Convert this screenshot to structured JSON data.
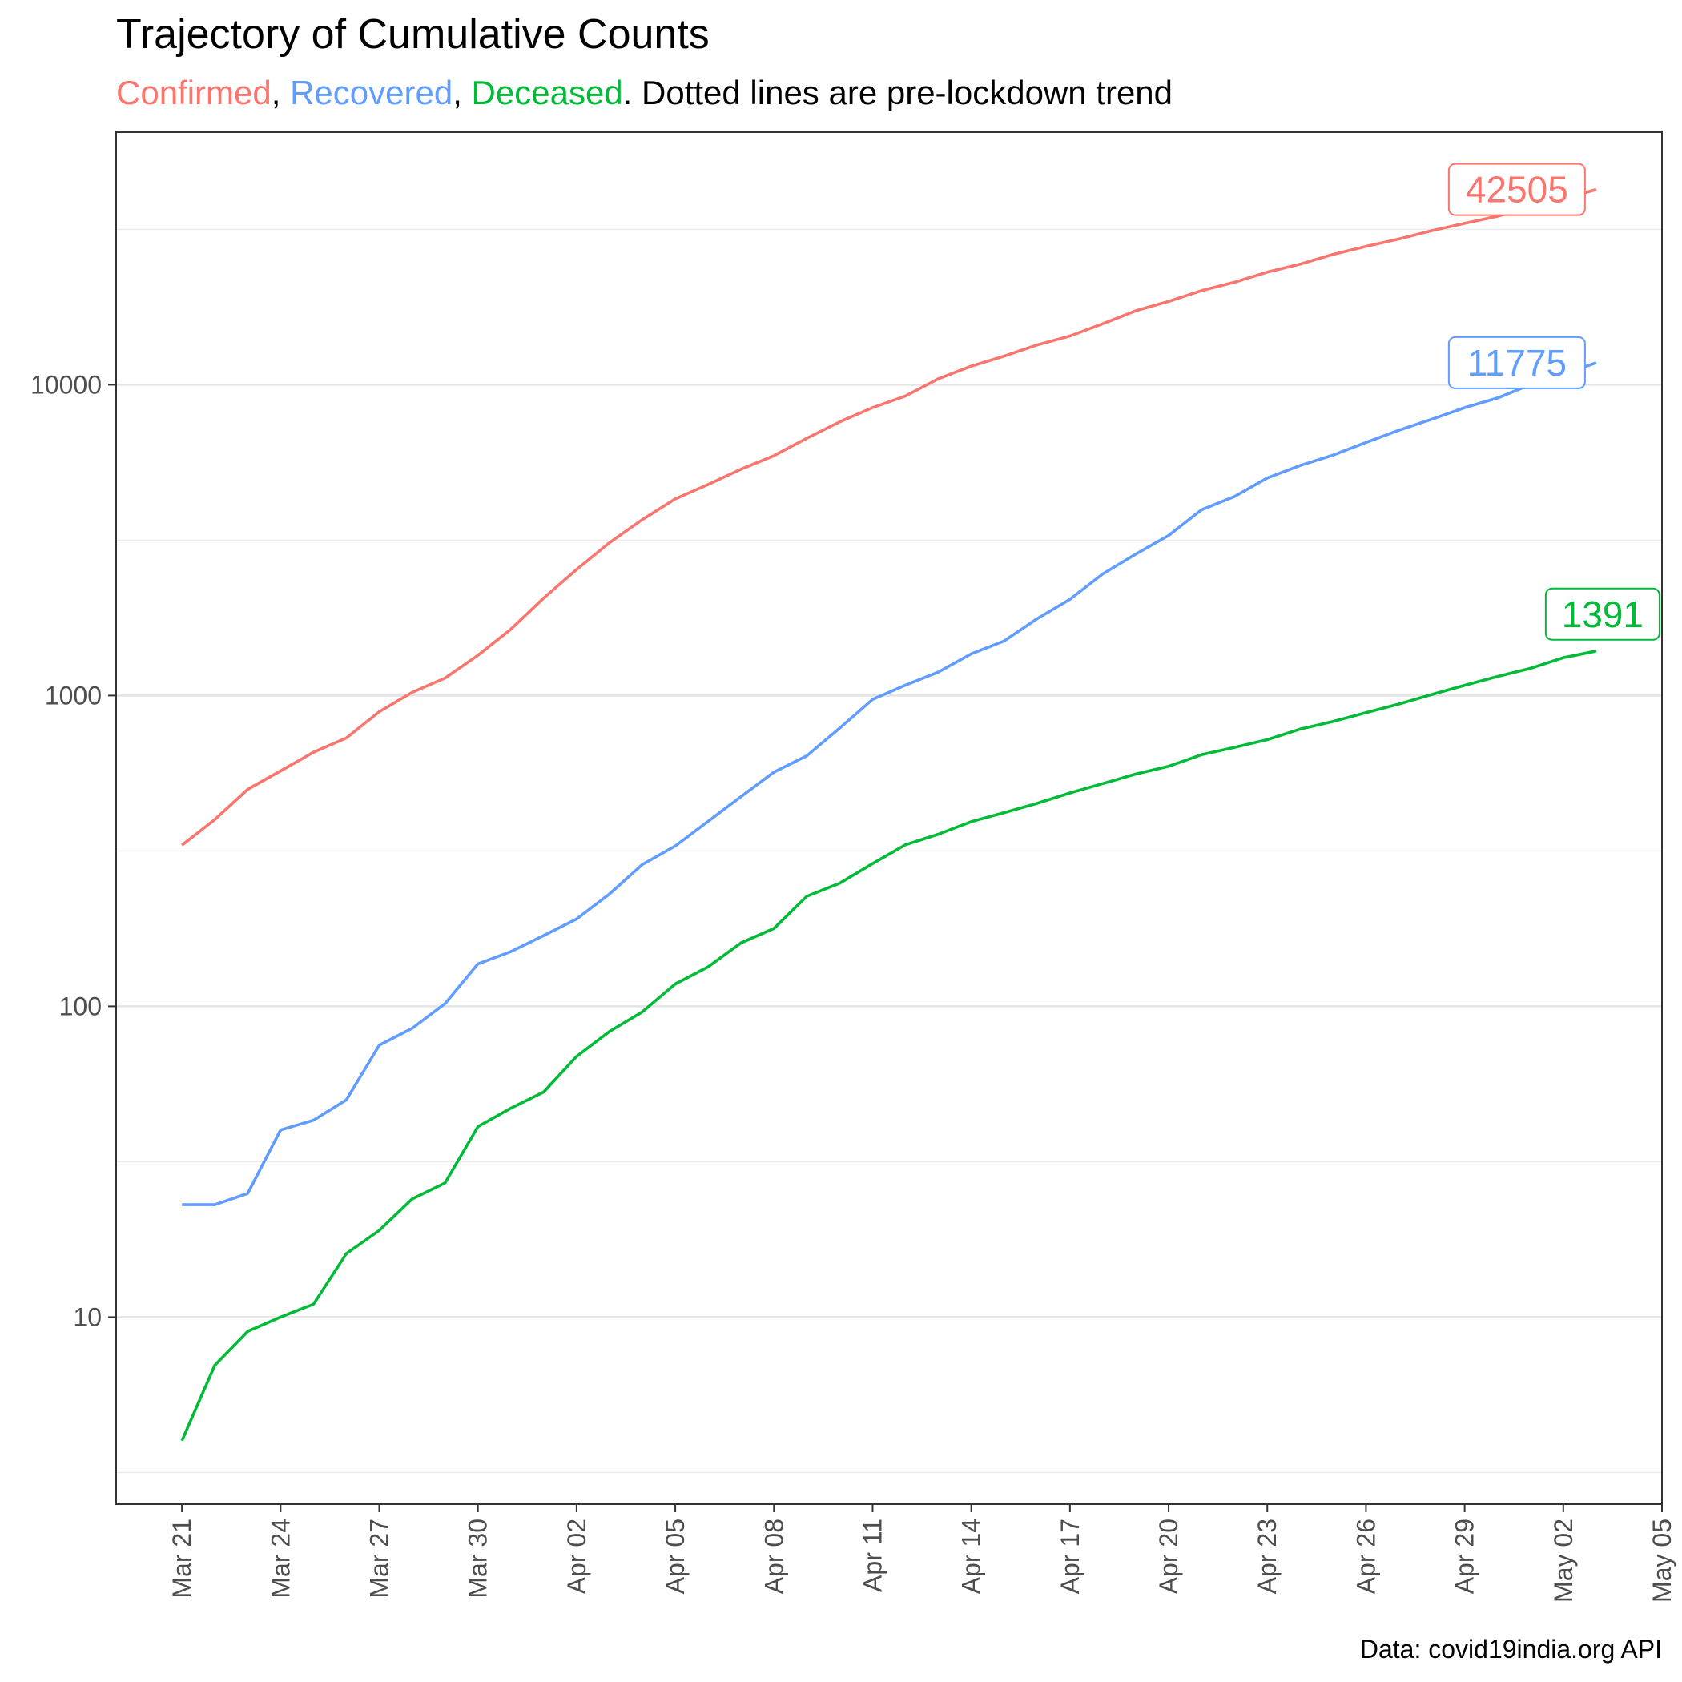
{
  "chart_data": {
    "type": "line",
    "title": "Trajectory of Cumulative Counts",
    "subtitle": {
      "parts": [
        {
          "text": "Confirmed",
          "color": "#F8766D"
        },
        {
          "text": ", ",
          "color": "#000000"
        },
        {
          "text": "Recovered",
          "color": "#619CFF"
        },
        {
          "text": ", ",
          "color": "#000000"
        },
        {
          "text": "Deceased",
          "color": "#00BA38"
        },
        {
          "text": ". Dotted lines are pre-lockdown trend",
          "color": "#000000"
        }
      ]
    },
    "caption": "Data: covid19india.org API",
    "y_scale": "log10",
    "ylim": [
      2.5,
      65000
    ],
    "y_ticks": [
      10,
      100,
      1000,
      10000
    ],
    "y_tick_labels": [
      "10",
      "100",
      "1000",
      "10000"
    ],
    "x_start": "2020-03-19",
    "x_end": "2020-05-05",
    "x_tick_labels": [
      "Mar 21",
      "Mar 24",
      "Mar 27",
      "Mar 30",
      "Apr 02",
      "Apr 05",
      "Apr 08",
      "Apr 11",
      "Apr 14",
      "Apr 17",
      "Apr 20",
      "Apr 23",
      "Apr 26",
      "Apr 29",
      "May 02",
      "May 05"
    ],
    "x_tick_dates": [
      "2020-03-21",
      "2020-03-24",
      "2020-03-27",
      "2020-03-30",
      "2020-04-02",
      "2020-04-05",
      "2020-04-08",
      "2020-04-11",
      "2020-04-14",
      "2020-04-17",
      "2020-04-20",
      "2020-04-23",
      "2020-04-26",
      "2020-04-29",
      "2020-05-02",
      "2020-05-05"
    ],
    "grid": true,
    "x": [
      "2020-03-21",
      "2020-03-22",
      "2020-03-23",
      "2020-03-24",
      "2020-03-25",
      "2020-03-26",
      "2020-03-27",
      "2020-03-28",
      "2020-03-29",
      "2020-03-30",
      "2020-03-31",
      "2020-04-01",
      "2020-04-02",
      "2020-04-03",
      "2020-04-04",
      "2020-04-05",
      "2020-04-06",
      "2020-04-07",
      "2020-04-08",
      "2020-04-09",
      "2020-04-10",
      "2020-04-11",
      "2020-04-12",
      "2020-04-13",
      "2020-04-14",
      "2020-04-15",
      "2020-04-16",
      "2020-04-17",
      "2020-04-18",
      "2020-04-19",
      "2020-04-20",
      "2020-04-21",
      "2020-04-22",
      "2020-04-23",
      "2020-04-24",
      "2020-04-25",
      "2020-04-26",
      "2020-04-27",
      "2020-04-28",
      "2020-04-29",
      "2020-04-30",
      "2020-05-01",
      "2020-05-02",
      "2020-05-03"
    ],
    "series": [
      {
        "name": "Confirmed",
        "color": "#F8766D",
        "end_label": "42505",
        "values": [
          330,
          399,
          499,
          572,
          657,
          730,
          887,
          1024,
          1138,
          1347,
          1635,
          2059,
          2545,
          3105,
          3684,
          4293,
          4777,
          5350,
          5915,
          6728,
          7599,
          8446,
          9205,
          10454,
          11485,
          12371,
          13430,
          14352,
          15722,
          17305,
          18544,
          20081,
          21373,
          23039,
          24447,
          26283,
          27890,
          29451,
          31324,
          33062,
          34863,
          37257,
          39699,
          42505
        ]
      },
      {
        "name": "Recovered",
        "color": "#619CFF",
        "end_label": "11775",
        "values": [
          23,
          23,
          25,
          40,
          43,
          50,
          75,
          85,
          102,
          137,
          150,
          169,
          191,
          230,
          286,
          328,
          394,
          473,
          567,
          640,
          786,
          972,
          1080,
          1190,
          1362,
          1498,
          1767,
          2041,
          2463,
          2853,
          3273,
          3960,
          4370,
          5012,
          5498,
          5940,
          6523,
          7137,
          7747,
          8437,
          9068,
          10007,
          10819,
          11775
        ]
      },
      {
        "name": "Deceased",
        "color": "#00BA38",
        "end_label": "1391",
        "values": [
          4,
          7,
          9,
          10,
          11,
          16,
          19,
          24,
          27,
          41,
          47,
          53,
          69,
          83,
          96,
          118,
          134,
          160,
          178,
          226,
          249,
          288,
          331,
          358,
          393,
          420,
          450,
          486,
          521,
          559,
          592,
          645,
          681,
          721,
          780,
          825,
          881,
          939,
          1008,
          1079,
          1152,
          1223,
          1323,
          1391
        ]
      }
    ]
  }
}
